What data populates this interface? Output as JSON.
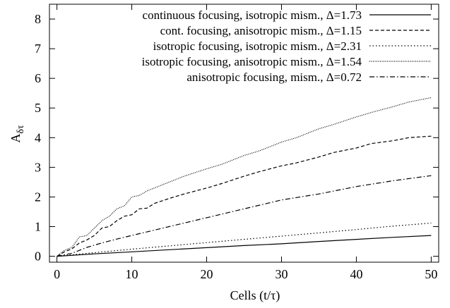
{
  "chart_data": {
    "type": "line",
    "xlabel": "Cells (t/τ)",
    "ylabel_main": "A",
    "ylabel_sub": "δτ",
    "xlim": [
      -1,
      51
    ],
    "ylim": [
      -0.2,
      8.5
    ],
    "xticks": [
      0,
      10,
      20,
      30,
      40,
      50
    ],
    "yticks": [
      0,
      1,
      2,
      3,
      4,
      5,
      6,
      7,
      8
    ],
    "grid": false,
    "legend_position": "top-right",
    "series": [
      {
        "name": "continuous focusing, isotropic mism., Δ=1.73",
        "dash": "solid",
        "x": [
          0,
          5,
          10,
          15,
          20,
          25,
          30,
          35,
          40,
          45,
          50
        ],
        "y": [
          0,
          0.08,
          0.15,
          0.22,
          0.29,
          0.36,
          0.42,
          0.5,
          0.57,
          0.64,
          0.7
        ]
      },
      {
        "name": "cont. focusing, anisotropic mism., Δ=1.15",
        "dash": "dashed",
        "x": [
          0,
          1,
          2,
          3,
          4,
          5,
          6,
          7,
          8,
          9,
          10,
          11,
          12,
          13,
          15,
          17,
          20,
          22,
          25,
          27,
          30,
          32,
          35,
          37,
          40,
          42,
          45,
          47,
          50
        ],
        "y": [
          0,
          0.15,
          0.25,
          0.45,
          0.55,
          0.7,
          0.95,
          1.0,
          1.2,
          1.35,
          1.4,
          1.6,
          1.62,
          1.78,
          1.95,
          2.1,
          2.3,
          2.45,
          2.7,
          2.85,
          3.05,
          3.15,
          3.35,
          3.5,
          3.65,
          3.8,
          3.9,
          4.0,
          4.05
        ]
      },
      {
        "name": "isotropic focusing, isotropic mism., Δ=2.31",
        "dash": "dotted",
        "x": [
          0,
          5,
          10,
          15,
          20,
          25,
          30,
          35,
          40,
          45,
          50
        ],
        "y": [
          0,
          0.12,
          0.24,
          0.35,
          0.46,
          0.57,
          0.68,
          0.79,
          0.9,
          1.02,
          1.12
        ]
      },
      {
        "name": "isotropic focusing, anisotropic mism., Δ=1.54",
        "dash": "finedot",
        "x": [
          0,
          1,
          2,
          3,
          4,
          5,
          6,
          7,
          8,
          9,
          10,
          11,
          12,
          13,
          15,
          17,
          20,
          22,
          25,
          27,
          30,
          32,
          35,
          37,
          40,
          42,
          45,
          47,
          50
        ],
        "y": [
          0,
          0.2,
          0.3,
          0.65,
          0.7,
          0.95,
          1.2,
          1.35,
          1.6,
          1.7,
          2.0,
          2.05,
          2.2,
          2.3,
          2.5,
          2.7,
          2.95,
          3.1,
          3.4,
          3.55,
          3.85,
          4.0,
          4.3,
          4.45,
          4.7,
          4.85,
          5.05,
          5.2,
          5.35
        ]
      },
      {
        "name": "anisotropic focusing, mism., Δ=0.72",
        "dash": "dashdot",
        "x": [
          0,
          2,
          4,
          6,
          8,
          10,
          15,
          20,
          25,
          30,
          35,
          40,
          45,
          50
        ],
        "y": [
          0,
          0.1,
          0.3,
          0.45,
          0.58,
          0.7,
          1.0,
          1.3,
          1.6,
          1.9,
          2.1,
          2.35,
          2.55,
          2.72
        ]
      }
    ]
  }
}
